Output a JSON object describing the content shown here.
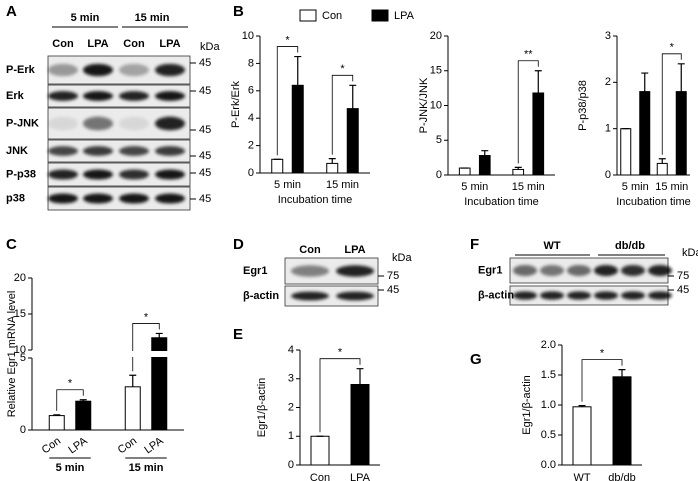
{
  "chart_data": [
    {
      "type": "bar",
      "panel": "B",
      "ylabel": "P-Erk/Erk",
      "xlabel": "Incubation time",
      "categories": [
        "5 min",
        "15 min"
      ],
      "series": [
        {
          "name": "Con",
          "color": "#ffffff",
          "values": [
            1,
            0.7
          ],
          "errors": [
            0,
            0.35
          ]
        },
        {
          "name": "LPA",
          "color": "#000000",
          "values": [
            6.4,
            4.7
          ],
          "errors": [
            2.1,
            1.7
          ]
        }
      ],
      "significance": [
        "*",
        "*"
      ],
      "ylim": [
        0,
        10
      ],
      "yticks": [
        0,
        2,
        4,
        6,
        8,
        10
      ],
      "legend": "top"
    },
    {
      "type": "bar",
      "ylabel": "P-JNK/JNK",
      "xlabel": "Incubation time",
      "categories": [
        "5 min",
        "15 min"
      ],
      "series": [
        {
          "name": "Con",
          "color": "#ffffff",
          "values": [
            1,
            0.8
          ],
          "errors": [
            0,
            0.3
          ]
        },
        {
          "name": "LPA",
          "color": "#000000",
          "values": [
            2.8,
            11.8
          ],
          "errors": [
            0.7,
            3.2
          ]
        }
      ],
      "significance": [
        null,
        "**"
      ],
      "ylim": [
        0,
        20
      ],
      "yticks": [
        0,
        5,
        10,
        15,
        20
      ]
    },
    {
      "type": "bar",
      "ylabel": "P-p38/p38",
      "xlabel": "Incubation time",
      "categories": [
        "5 min",
        "15 min"
      ],
      "series": [
        {
          "name": "Con",
          "color": "#ffffff",
          "values": [
            1,
            0.25
          ],
          "errors": [
            0,
            0.1
          ]
        },
        {
          "name": "LPA",
          "color": "#000000",
          "values": [
            1.8,
            1.8
          ],
          "errors": [
            0.4,
            0.6
          ]
        }
      ],
      "significance": [
        null,
        "*"
      ],
      "ylim": [
        0,
        3
      ],
      "yticks": [
        0,
        1,
        2,
        3
      ]
    },
    {
      "type": "bar",
      "panel": "C",
      "ylabel": "Relative Egr1 mRNA level",
      "categories": [
        "5 min",
        "15 min"
      ],
      "series": [
        {
          "name": "Con",
          "color": "#ffffff",
          "values": [
            1.0,
            3.0
          ],
          "errors": [
            0.05,
            0.8
          ]
        },
        {
          "name": "LPA",
          "color": "#000000",
          "values": [
            2.0,
            11.7
          ],
          "errors": [
            0.1,
            0.6
          ]
        }
      ],
      "significance": [
        "*",
        "*"
      ],
      "ylim": [
        0,
        20
      ],
      "axis_break": [
        5,
        10
      ],
      "yticks": [
        0,
        5,
        10,
        15,
        20
      ],
      "bar_labels": "series"
    },
    {
      "type": "bar",
      "panel": "E",
      "ylabel": "Egr1/β-actin",
      "categories": [
        "Con",
        "LPA"
      ],
      "values": [
        1,
        2.8
      ],
      "errors": [
        0,
        0.55
      ],
      "colors": [
        "#ffffff",
        "#000000"
      ],
      "significance": [
        "*"
      ],
      "ylim": [
        0,
        4
      ],
      "yticks": [
        0,
        1,
        2,
        3,
        4
      ]
    },
    {
      "type": "bar",
      "panel": "G",
      "ylabel": "Egr1/β-actin",
      "categories": [
        "WT",
        "db/db"
      ],
      "values": [
        0.97,
        1.47
      ],
      "errors": [
        0.02,
        0.12
      ],
      "colors": [
        "#ffffff",
        "#000000"
      ],
      "significance": [
        "*"
      ],
      "ylim": [
        0,
        2
      ],
      "yticks": [
        {
          "value": 0,
          "label": "0.0"
        },
        0.5,
        {
          "value": 1,
          "label": "1.0"
        },
        1.5,
        {
          "value": 2,
          "label": "2.0"
        }
      ]
    }
  ],
  "blots": [
    {
      "panel": "A",
      "groups": [
        "5 min",
        "15 min"
      ],
      "lanes": [
        "Con",
        "LPA",
        "Con",
        "LPA"
      ],
      "unit": "kDa",
      "rows": [
        {
          "label": "P-Erk",
          "marker": "45"
        },
        {
          "label": "Erk",
          "marker": "45"
        },
        {
          "label": "P-JNK",
          "marker": "45"
        },
        {
          "label": "JNK",
          "marker": "45"
        },
        {
          "label": "P-p38",
          "marker": "45"
        },
        {
          "label": "p38",
          "marker": "45"
        }
      ]
    },
    {
      "panel": "D",
      "lanes": [
        "Con",
        "LPA"
      ],
      "unit": "kDa",
      "rows": [
        {
          "label": "Egr1",
          "marker": "75"
        },
        {
          "label": "β-actin",
          "marker": "45"
        }
      ]
    },
    {
      "panel": "F",
      "groups": [
        "WT",
        "db/db"
      ],
      "unit": "kDa",
      "rows": [
        {
          "label": "Egr1",
          "marker": "75"
        },
        {
          "label": "β-actin",
          "marker": "45"
        }
      ]
    }
  ]
}
